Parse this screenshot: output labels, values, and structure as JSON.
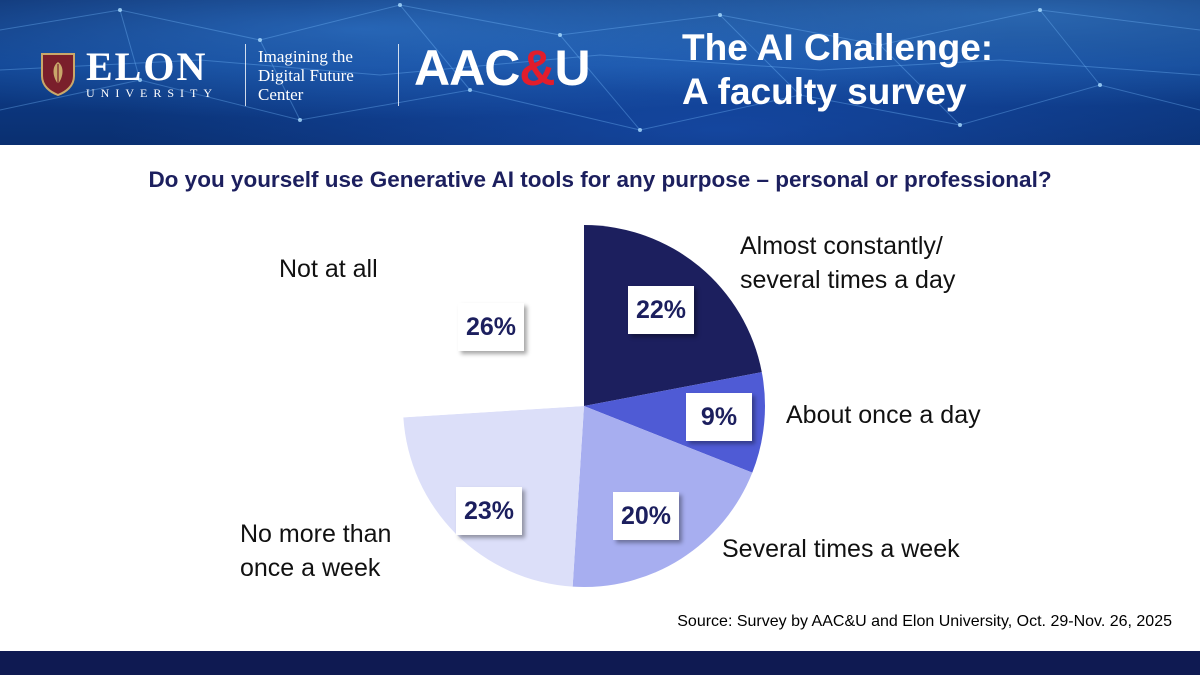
{
  "header": {
    "logo_name": "ELON",
    "logo_sub": "UNIVERSITY",
    "center_name": "Imagining the Digital Future Center",
    "aacu_prefix": "AAC",
    "aacu_amp": "&",
    "aacu_suffix": "U",
    "title_line1": "The AI Challenge:",
    "title_line2": "A faculty survey"
  },
  "colors": {
    "navy": "#1c1f5e",
    "banner_blue": "#0d3d8a",
    "aacu_red": "#e21d2c",
    "footer": "#0f1a52"
  },
  "chart_data": {
    "type": "pie",
    "title": "Do you yourself use Generative AI tools for any purpose – personal or professional?",
    "slices": [
      {
        "label": "Almost constantly/ several times a day",
        "label_lines": [
          "Almost constantly/",
          "several times a day"
        ],
        "value": 22,
        "value_label": "22%",
        "color": "#1c1f5e"
      },
      {
        "label": "About once a day",
        "label_lines": [
          "About once a day"
        ],
        "value": 9,
        "value_label": "9%",
        "color": "#4f5bd5"
      },
      {
        "label": "Several times a week",
        "label_lines": [
          "Several times a week"
        ],
        "value": 20,
        "value_label": "20%",
        "color": "#a7aef0"
      },
      {
        "label": "No more than once a week",
        "label_lines": [
          "No more than",
          "once a week"
        ],
        "value": 23,
        "value_label": "23%",
        "color": "#dcdff9"
      },
      {
        "label": "Not at all",
        "label_lines": [
          "Not at all"
        ],
        "value": 26,
        "value_label": "26%",
        "color": "#ffffff"
      }
    ]
  },
  "source": "Source: Survey by AAC&U and Elon University, Oct. 29-Nov. 26, 2025"
}
